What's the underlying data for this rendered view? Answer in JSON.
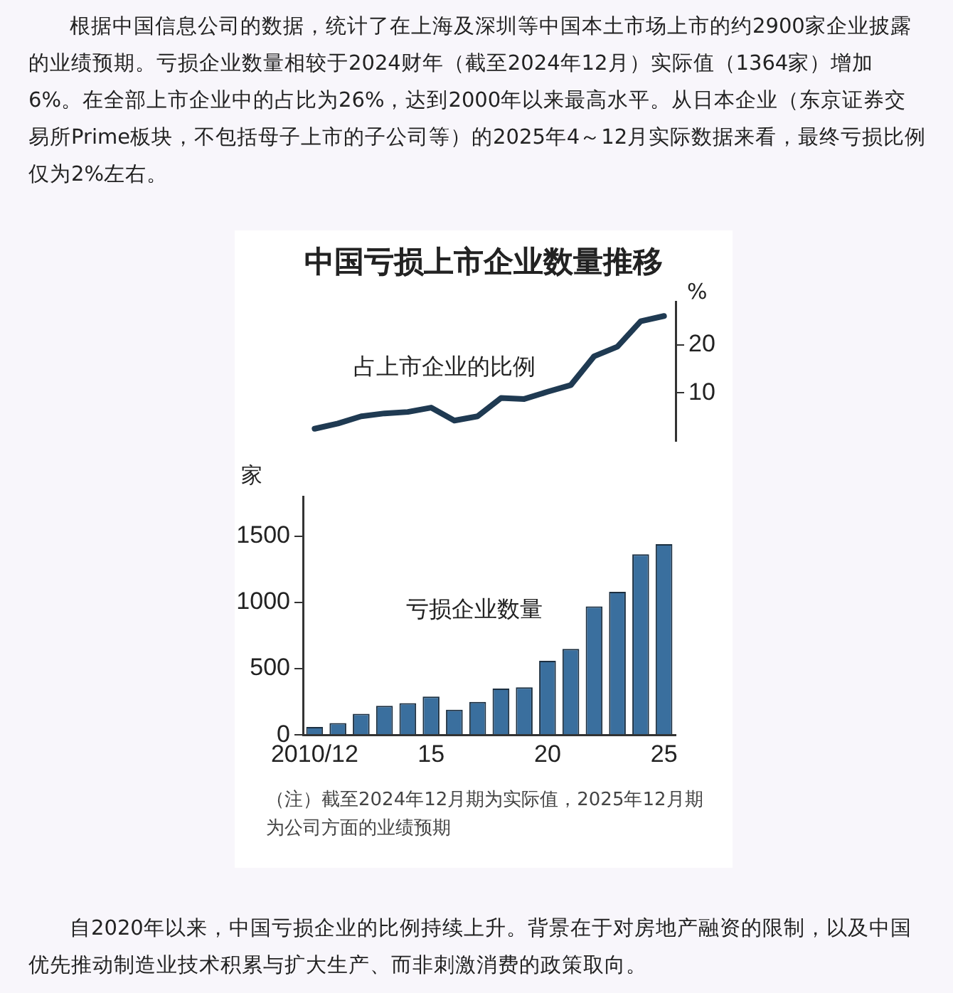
{
  "chart_data": [
    {
      "type": "line",
      "title": "中国亏损上市企业数量推移",
      "ylabel": "%",
      "annotations": [
        "根据中国信息公司的数据，统计了在上海及深圳等中国本土市场上市的约2900家企业披露的业绩预期。亏损企业数量相较于2024财年（截至2024年12月）实际值（1364家）增加6%。在全部上市企业中的占比为26%，达到2000年以来最高水平。从日本企业（东京证券交易所Prime板块，不包括母子上市的子公司等）的2025年4～12月实际数据来看，最终亏损比例仅为2%左右。"
      ],
      "categories": [
        "2010/12",
        null,
        null,
        null,
        null,
        "15",
        null,
        null,
        null,
        null,
        "20",
        null,
        null,
        null,
        null,
        "25"
      ],
      "series": [
        {
          "name": "占上市企业的比例",
          "color": "#1f3a52",
          "values": [
            2.5,
            3.6,
            5.1,
            5.7,
            6.0,
            6.9,
            4.2,
            5.1,
            8.9,
            8.7,
            10.2,
            11.6,
            17.6,
            19.6,
            24.9,
            26
          ]
        }
      ],
      "ylim": [
        0,
        29
      ],
      "yticks": [
        10,
        20
      ],
      "grid": false,
      "legend": false,
      "marker": "none",
      "line_style": "solid",
      "tick_labels": "y"
    },
    {
      "type": "bar",
      "ylabel": "家",
      "annotations": [
        "（注）截至2024年12月期为实际值，2025年12月期为公司方面的业绩预期",
        "自2020年以来，中国亏损企业的比例持续上升。背景在于对房地产融资的限制，以及中国优先推动制造业技术积累与扩大生产、而非刺激消费的政策取向。"
      ],
      "categories": [
        "2010/12",
        null,
        null,
        null,
        null,
        "15",
        null,
        null,
        null,
        null,
        "20",
        null,
        null,
        null,
        null,
        "25"
      ],
      "series": [
        {
          "name": "亏损企业数量",
          "color": "#3a6f9e",
          "values": [
            60,
            90,
            160,
            220,
            240,
            290,
            190,
            250,
            350,
            360,
            560,
            650,
            970,
            1080,
            1364,
            1440
          ]
        }
      ],
      "ylim": [
        0,
        1800
      ],
      "yticks": [
        0,
        500,
        1000,
        1500
      ],
      "grid": false,
      "legend": false
    }
  ]
}
